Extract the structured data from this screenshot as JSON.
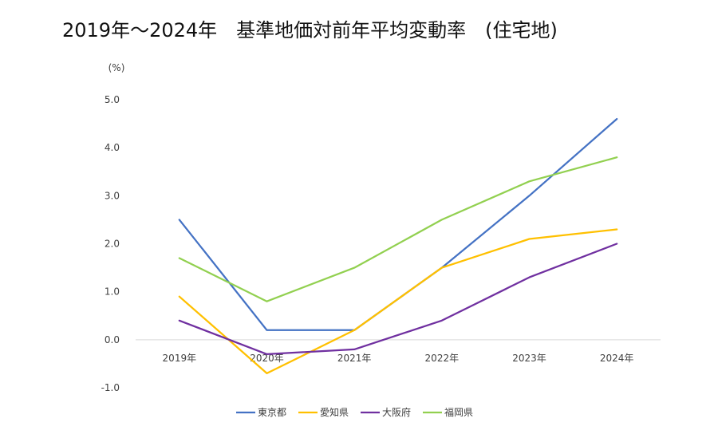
{
  "chart_data": {
    "type": "line",
    "title": "2019年～2024年　基準地価対前年平均変動率　(住宅地)",
    "ylabel": "(%)",
    "xlabel": "",
    "categories": [
      "2019年",
      "2020年",
      "2021年",
      "2022年",
      "2023年",
      "2024年"
    ],
    "ylim": [
      -1.0,
      5.0
    ],
    "yticks": [
      5.0,
      4.0,
      3.0,
      2.0,
      1.0,
      0.0,
      -1.0
    ],
    "ytick_labels": [
      "5.0",
      "4.0",
      "3.0",
      "2.0",
      "1.0",
      "0.0",
      "-1.0"
    ],
    "negative_tick_color": "#ff0000",
    "grid": false,
    "legend_position": "bottom",
    "series": [
      {
        "name": "東京都",
        "color": "#4472c4",
        "values": [
          2.5,
          0.2,
          0.2,
          1.5,
          3.0,
          4.6
        ]
      },
      {
        "name": "愛知県",
        "color": "#ffc000",
        "values": [
          0.9,
          -0.7,
          0.2,
          1.5,
          2.1,
          2.3
        ]
      },
      {
        "name": "大阪府",
        "color": "#7030a0",
        "values": [
          0.4,
          -0.3,
          -0.2,
          0.4,
          1.3,
          2.0
        ]
      },
      {
        "name": "福岡県",
        "color": "#92d050",
        "values": [
          1.7,
          0.8,
          1.5,
          2.5,
          3.3,
          3.8
        ]
      }
    ]
  }
}
